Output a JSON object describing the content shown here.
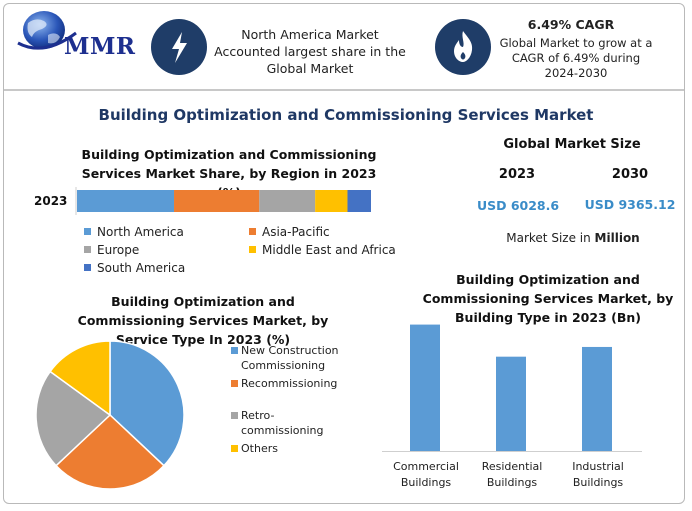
{
  "header": {
    "logo_text": "MMR",
    "highlight_text": "North America Market Accounted largest share in the Global Market",
    "cagr_title": "6.49% CAGR",
    "cagr_text": "Global Market to grow at a CAGR of 6.49% during 2024-2030"
  },
  "main_title": "Building Optimization and Commissioning Services Market",
  "market_size": {
    "title": "Global Market Size",
    "year_a": "2023",
    "year_b": "2030",
    "value_a": "USD 6028.6",
    "value_b": "USD 9365.12",
    "unit_prefix": "Market Size in",
    "unit": "Million"
  },
  "colors": {
    "north_america": "#5b9bd5",
    "asia_pacific": "#ed7d31",
    "europe": "#a5a5a5",
    "mea": "#ffc000",
    "south_america": "#4472c4",
    "icon_bg": "#1f3d68",
    "title_blue": "#1f3864"
  },
  "icons": [
    "globe-icon",
    "lightning-icon",
    "flame-icon"
  ],
  "chart_data": [
    {
      "type": "bar",
      "orientation": "horizontal-stacked",
      "title": "Building Optimization and Commissioning Services Market Share, by Region in 2023 (%)",
      "categories": [
        "2023"
      ],
      "series": [
        {
          "name": "North America",
          "values": [
            33
          ]
        },
        {
          "name": "Asia-Pacific",
          "values": [
            29
          ]
        },
        {
          "name": "Europe",
          "values": [
            19
          ]
        },
        {
          "name": "Middle East and Africa",
          "values": [
            11
          ]
        },
        {
          "name": "South America",
          "values": [
            8
          ]
        }
      ],
      "legend": "bottom",
      "grid": false
    },
    {
      "type": "pie",
      "title": "Building Optimization and Commissioning Services Market, by Service Type In 2023 (%)",
      "labels": [
        "New Construction Commissioning",
        "Recommissioning",
        "Retro-commissioning",
        "Others"
      ],
      "values": [
        37,
        26,
        22,
        15
      ],
      "legend": "right"
    },
    {
      "type": "bar",
      "title": "Building Optimization and Commissioning Services Market, by Building Type in 2023 (Bn)",
      "categories": [
        "Commercial Buildings",
        "Residential Buildings",
        "Industrial Buildings"
      ],
      "values": [
        2.6,
        1.94,
        2.14
      ],
      "xlabel": "",
      "ylabel": "",
      "grid": false
    }
  ]
}
